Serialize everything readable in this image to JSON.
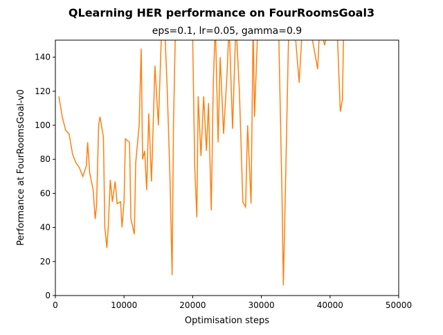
{
  "chart_data": {
    "type": "line",
    "title": "QLearning HER performance on FourRoomsGoal3",
    "subtitle": "eps=0.1, lr=0.05, gamma=0.9",
    "x_label": "Optimisation steps",
    "y_label": "Performance at FourRoomsGoal-v0",
    "xlim": [
      0,
      50000
    ],
    "xticks": [
      0,
      10000,
      20000,
      30000,
      40000,
      50000
    ],
    "ylim": [
      0,
      150
    ],
    "yticks": [
      0,
      20,
      40,
      60,
      80,
      100,
      120,
      140
    ],
    "grid": false,
    "series": [
      {
        "color": "#ff7f0e",
        "x": [
          500,
          1000,
          1500,
          2000,
          2500,
          3000,
          3500,
          4000,
          4500,
          4700,
          5000,
          5500,
          5800,
          6000,
          6300,
          6500,
          7000,
          7200,
          7500,
          7700,
          8000,
          8300,
          8700,
          9000,
          9500,
          9700,
          10000,
          10200,
          10800,
          11000,
          11500,
          11700,
          12200,
          12500,
          12700,
          13000,
          13300,
          13600,
          14000,
          14500,
          15000,
          15500,
          16000,
          16300,
          16700,
          17000,
          17200,
          17500,
          18000,
          19000,
          20000,
          20300,
          20600,
          20800,
          21200,
          21600,
          22000,
          22300,
          22700,
          23000,
          23300,
          23700,
          24000,
          24500,
          25000,
          25300,
          25800,
          26300,
          26800,
          27300,
          27700,
          28000,
          28500,
          28800,
          29000,
          29500,
          30500,
          31500,
          32500,
          33000,
          33200,
          33500,
          34000,
          35000,
          35500,
          36000,
          37000,
          38200,
          38500,
          39200,
          40000,
          41000,
          41500,
          41800,
          42000
        ],
        "values": [
          117,
          105,
          97,
          95,
          83,
          78,
          75,
          70,
          76,
          90,
          72,
          62,
          45,
          53,
          100,
          105,
          93,
          40,
          28,
          40,
          68,
          55,
          67,
          54,
          55,
          40,
          55,
          92,
          90,
          45,
          36,
          78,
          100,
          145,
          80,
          85,
          62,
          107,
          67,
          135,
          100,
          160,
          150,
          120,
          68,
          12,
          100,
          160,
          160,
          160,
          150,
          75,
          46,
          117,
          82,
          117,
          85,
          113,
          50,
          125,
          160,
          90,
          140,
          95,
          130,
          160,
          98,
          160,
          120,
          55,
          52,
          100,
          54,
          160,
          105,
          160,
          160,
          160,
          160,
          60,
          6,
          62,
          160,
          150,
          125,
          160,
          160,
          133,
          160,
          147,
          160,
          160,
          108,
          115,
          160
        ]
      }
    ]
  }
}
